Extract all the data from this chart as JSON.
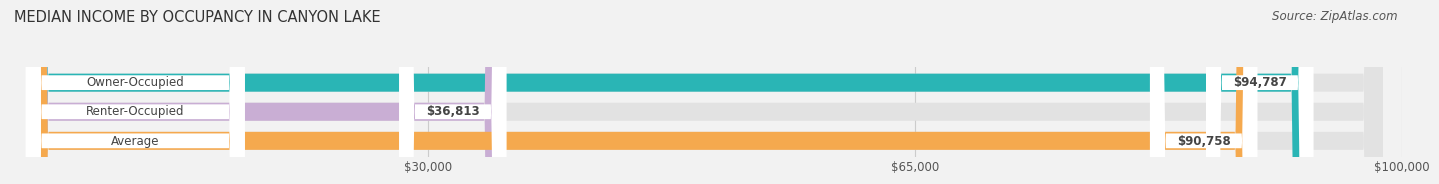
{
  "title": "MEDIAN INCOME BY OCCUPANCY IN CANYON LAKE",
  "source": "Source: ZipAtlas.com",
  "categories": [
    "Owner-Occupied",
    "Renter-Occupied",
    "Average"
  ],
  "values": [
    94787,
    36813,
    90758
  ],
  "bar_colors": [
    "#2ab5b5",
    "#c9aed4",
    "#f5a94e"
  ],
  "bar_labels": [
    "$94,787",
    "$36,813",
    "$90,758"
  ],
  "xlim": [
    0,
    100000
  ],
  "xticks": [
    30000,
    65000,
    100000
  ],
  "xtick_labels": [
    "$30,000",
    "$65,000",
    "$100,000"
  ],
  "title_fontsize": 10.5,
  "source_fontsize": 8.5,
  "label_fontsize": 8.5,
  "bar_height": 0.62,
  "background_color": "#f2f2f2",
  "bar_bg_color": "#e2e2e2",
  "white_pill_color": "#ffffff",
  "text_color_dark": "#444444",
  "text_color_white": "#ffffff",
  "grid_color": "#cccccc"
}
